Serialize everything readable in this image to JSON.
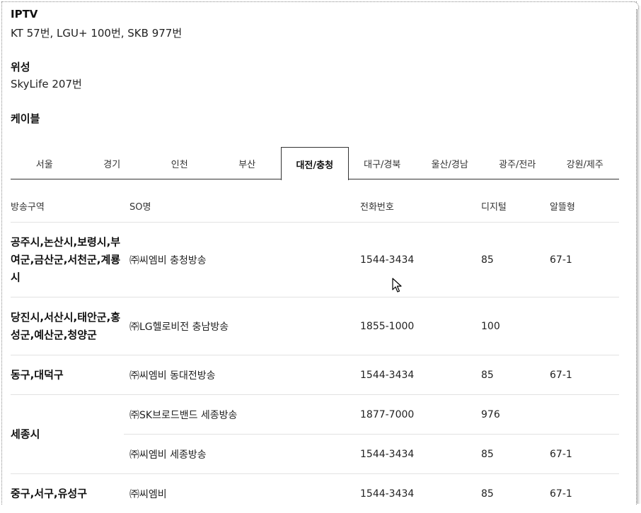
{
  "iptv": {
    "title": "IPTV",
    "text": "KT 57번, LGU+ 100번, SKB 977번"
  },
  "satellite": {
    "title": "위성",
    "text": "SkyLife 207번"
  },
  "cable": {
    "title": "케이블"
  },
  "tabs": [
    {
      "label": "서울"
    },
    {
      "label": "경기"
    },
    {
      "label": "인천"
    },
    {
      "label": "부산"
    },
    {
      "label": "대전/충청",
      "active": true
    },
    {
      "label": "대구/경북"
    },
    {
      "label": "울산/경남"
    },
    {
      "label": "광주/전라"
    },
    {
      "label": "강원/제주"
    }
  ],
  "table": {
    "headers": {
      "region": "방송구역",
      "so": "SO명",
      "tel": "전화번호",
      "digital": "디지털",
      "analog": "알뜰형"
    },
    "rows": [
      {
        "region": "공주시,논산시,보령시,부여군,금산군,서천군,계룡시",
        "so": "㈜씨엠비 충청방송",
        "tel": "1544-3434",
        "digital": "85",
        "analog": "67-1"
      },
      {
        "region": "당진시,서산시,태안군,홍성군,예산군,청양군",
        "so": "㈜LG헬로비전 충남방송",
        "tel": "1855-1000",
        "digital": "100",
        "analog": ""
      },
      {
        "region": "동구,대덕구",
        "so": "㈜씨엠비 동대전방송",
        "tel": "1544-3434",
        "digital": "85",
        "analog": "67-1"
      },
      {
        "region": "세종시",
        "subrows": [
          {
            "so": "㈜SK브로드밴드 세종방송",
            "tel": "1877-7000",
            "digital": "976",
            "analog": ""
          },
          {
            "so": "㈜씨엠비 세종방송",
            "tel": "1544-3434",
            "digital": "85",
            "analog": "67-1"
          }
        ]
      },
      {
        "region": "중구,서구,유성구",
        "so": "㈜씨엠비",
        "tel": "1544-3434",
        "digital": "85",
        "analog": "67-1"
      }
    ]
  }
}
